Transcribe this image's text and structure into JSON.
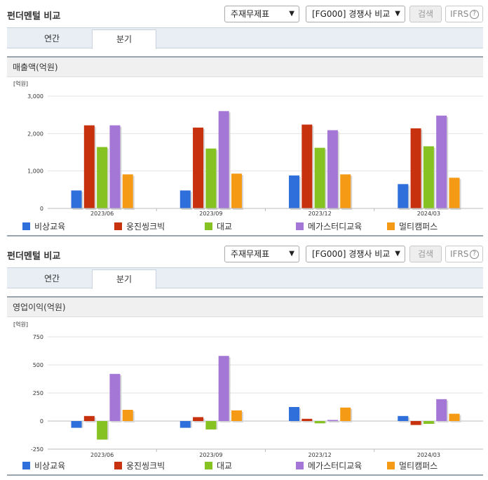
{
  "header": {
    "title": "펀더멘털 비교",
    "select_statement": "주재무제표",
    "select_compare": "[FG000] 경쟁사 비교",
    "search_label": "검색",
    "ifrs_label": "IFRS",
    "ifrs_help": "?"
  },
  "tabs": {
    "annual": "연간",
    "quarter": "분기",
    "active": "quarter"
  },
  "chart_data": [
    {
      "type": "bar",
      "title": "매출액(억원)",
      "unit_label": "[억원]",
      "categories": [
        "2023/06",
        "2023/09",
        "2023/12",
        "2024/03"
      ],
      "ylim": [
        0,
        3000
      ],
      "yticks": [
        0,
        1000,
        2000,
        3000
      ],
      "ytick_labels": [
        "0",
        "1,000",
        "2,000",
        "3,000"
      ],
      "grid": true,
      "legend_position": "bottom",
      "series": [
        {
          "name": "비상교육",
          "color": "#2f6fdb",
          "values": [
            480,
            480,
            880,
            650
          ]
        },
        {
          "name": "웅진씽크빅",
          "color": "#c8310e",
          "values": [
            2220,
            2160,
            2240,
            2140
          ]
        },
        {
          "name": "대교",
          "color": "#86c322",
          "values": [
            1640,
            1600,
            1620,
            1660
          ]
        },
        {
          "name": "메가스터디교육",
          "color": "#a477d6",
          "values": [
            2220,
            2600,
            2090,
            2480
          ]
        },
        {
          "name": "멀티캠퍼스",
          "color": "#f59a14",
          "values": [
            910,
            930,
            910,
            820
          ]
        }
      ]
    },
    {
      "type": "bar",
      "title": "영업이익(억원)",
      "unit_label": "[억원]",
      "categories": [
        "2023/06",
        "2023/09",
        "2023/12",
        "2024/03"
      ],
      "ylim": [
        -250,
        750
      ],
      "yticks": [
        -250,
        0,
        250,
        500,
        750
      ],
      "ytick_labels": [
        "-250",
        "0",
        "250",
        "500",
        "750"
      ],
      "grid": true,
      "legend_position": "bottom",
      "series": [
        {
          "name": "비상교육",
          "color": "#2f6fdb",
          "values": [
            -60,
            -60,
            125,
            45
          ]
        },
        {
          "name": "웅진씽크빅",
          "color": "#c8310e",
          "values": [
            45,
            35,
            20,
            -35
          ]
        },
        {
          "name": "대교",
          "color": "#86c322",
          "values": [
            -165,
            -75,
            -20,
            -25
          ]
        },
        {
          "name": "메가스터디교육",
          "color": "#a477d6",
          "values": [
            420,
            580,
            10,
            195
          ]
        },
        {
          "name": "멀티캠퍼스",
          "color": "#f59a14",
          "values": [
            100,
            95,
            120,
            65
          ]
        }
      ]
    }
  ]
}
